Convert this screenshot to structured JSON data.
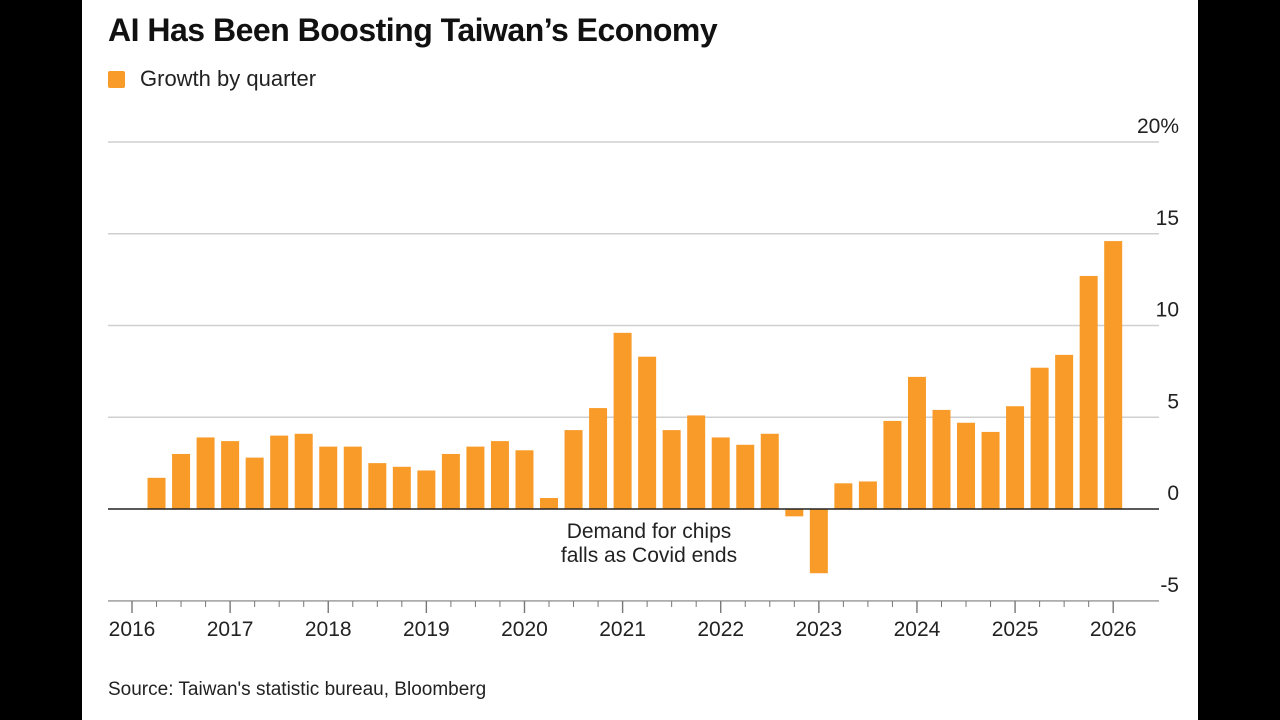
{
  "title": "AI Has Been Boosting Taiwan’s Economy",
  "legend": {
    "label": "Growth by quarter",
    "color": "#F89B29"
  },
  "source": "Source: Taiwan's statistic bureau, Bloomberg",
  "chart_data": {
    "type": "bar",
    "title": "AI Has Been Boosting Taiwan’s Economy",
    "xlabel": "",
    "ylabel": "",
    "ylim": [
      -5,
      20
    ],
    "yticks": [
      20,
      15,
      10,
      5,
      0,
      -5
    ],
    "ytick_labels": [
      "20%",
      "15",
      "10",
      "5",
      "0",
      "-5"
    ],
    "x_year_labels": [
      "2016",
      "2017",
      "2018",
      "2019",
      "2020",
      "2021",
      "2022",
      "2023",
      "2024",
      "2025",
      "2026"
    ],
    "grid": true,
    "legend_position": "top-left",
    "series": [
      {
        "name": "Growth by quarter",
        "color": "#F89B29",
        "values": [
          0.0,
          1.7,
          3.0,
          3.9,
          3.7,
          2.8,
          4.0,
          4.1,
          3.4,
          3.4,
          2.5,
          2.3,
          2.1,
          3.0,
          3.4,
          3.7,
          3.2,
          0.6,
          4.3,
          5.5,
          9.6,
          8.3,
          4.3,
          5.1,
          3.9,
          3.5,
          4.1,
          -0.4,
          -3.5,
          1.4,
          1.5,
          4.8,
          7.2,
          5.4,
          4.7,
          4.2,
          5.6,
          7.7,
          8.4,
          12.7,
          14.6
        ]
      }
    ],
    "annotations": [
      {
        "text_lines": [
          "Demand for chips",
          "falls as Covid ends"
        ],
        "near_index": 28
      }
    ]
  }
}
